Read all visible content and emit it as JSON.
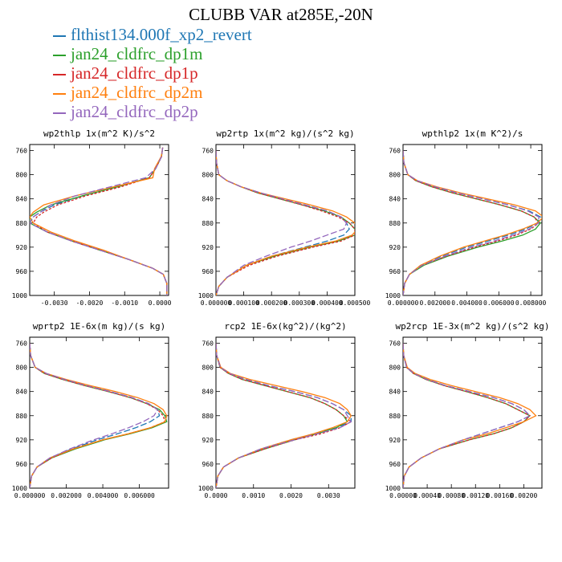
{
  "title": "CLUBB VAR at285E,-20N",
  "legend": [
    {
      "label": "flthist134.000f_xp2_revert",
      "color": "#1f77b4"
    },
    {
      "label": "jan24_cldfrc_dp1m",
      "color": "#2ca02c"
    },
    {
      "label": "jan24_cldfrc_dp1p",
      "color": "#d62728"
    },
    {
      "label": "jan24_cldfrc_dp2m",
      "color": "#ff7f0e"
    },
    {
      "label": "jan24_cldfrc_dp2p",
      "color": "#9467bd"
    }
  ],
  "chart_data": [
    {
      "type": "line",
      "title": "wp2thlp   1x(m^2 K)/s^2",
      "ylim": [
        1000,
        750
      ],
      "xlim": [
        -0.0037,
        0.00025
      ],
      "yticks": [
        760,
        800,
        840,
        880,
        920,
        960,
        1000
      ],
      "xticks": [
        -0.003,
        -0.002,
        -0.001,
        0.0
      ],
      "xticklabels": [
        "-0.0030",
        "-0.0020",
        "-0.0010",
        "0.0000"
      ],
      "y": [
        755,
        770,
        790,
        805,
        820,
        835,
        850,
        862,
        870,
        880,
        895,
        910,
        925,
        940,
        955,
        965,
        980,
        1000
      ],
      "series": [
        {
          "x": [
            8e-05,
            5e-05,
            -0.00012,
            -0.0003,
            -0.0012,
            -0.0022,
            -0.003,
            -0.0034,
            -0.0036,
            -0.0037,
            -0.0032,
            -0.0025,
            -0.0017,
            -0.0009,
            -0.0002,
            0.0001,
            0.0002,
            0.0002
          ]
        },
        {
          "x": [
            8e-05,
            5e-05,
            -0.00012,
            -0.0003,
            -0.0012,
            -0.0022,
            -0.0031,
            -0.0035,
            -0.0037,
            -0.0037,
            -0.0032,
            -0.0025,
            -0.0017,
            -0.0009,
            -0.0002,
            0.0001,
            0.0002,
            0.0002
          ]
        },
        {
          "x": [
            8e-05,
            5e-05,
            -0.00012,
            -0.0003,
            -0.0011,
            -0.0021,
            -0.0029,
            -0.0033,
            -0.0035,
            -0.0036,
            -0.0032,
            -0.0025,
            -0.0017,
            -0.0009,
            -0.0002,
            0.0001,
            0.0002,
            0.0002
          ]
        },
        {
          "x": [
            8e-05,
            4e-05,
            -0.00015,
            -0.0002,
            -0.0013,
            -0.0024,
            -0.0033,
            -0.0036,
            -0.0037,
            -0.0036,
            -0.0031,
            -0.0024,
            -0.0016,
            -0.0009,
            -0.0002,
            0.0001,
            0.0002,
            0.0002
          ]
        },
        {
          "x": [
            8e-05,
            5e-05,
            -0.00012,
            -0.0004,
            -0.0014,
            -0.0024,
            -0.0031,
            -0.0034,
            -0.0036,
            -0.0037,
            -0.0032,
            -0.0025,
            -0.0017,
            -0.0009,
            -0.0002,
            0.0001,
            0.0002,
            0.0002
          ]
        }
      ]
    },
    {
      "type": "line",
      "title": "wp2rtp   1x(m^2 kg)/(s^2 kg)",
      "ylim": [
        1000,
        750
      ],
      "xlim": [
        0,
        0.0005
      ],
      "yticks": [
        760,
        800,
        840,
        880,
        920,
        960,
        1000
      ],
      "xticks": [
        0.0,
        0.0001,
        0.0002,
        0.0003,
        0.0004,
        0.0005
      ],
      "xticklabels": [
        "0.000000",
        "0.000100",
        "0.000200",
        "0.000300",
        "0.000400",
        "0.000500"
      ],
      "y": [
        760,
        780,
        800,
        810,
        820,
        830,
        840,
        850,
        860,
        870,
        880,
        890,
        900,
        910,
        920,
        935,
        950,
        970,
        985,
        1000
      ],
      "series": [
        {
          "x": [
            0.0,
            2e-06,
            1e-05,
            4e-05,
            9e-05,
            0.00016,
            0.00024,
            0.00032,
            0.0004,
            0.00045,
            0.00047,
            0.00048,
            0.00046,
            0.0004,
            0.00032,
            0.0002,
            0.00011,
            4e-05,
            1e-05,
            0.0
          ]
        },
        {
          "x": [
            0.0,
            2e-06,
            1e-05,
            4e-05,
            9e-05,
            0.00015,
            0.00023,
            0.00031,
            0.00039,
            0.00045,
            0.00048,
            0.0005,
            0.0005,
            0.00044,
            0.00034,
            0.00021,
            0.00011,
            4e-05,
            1e-05,
            0.0
          ]
        },
        {
          "x": [
            0.0,
            2e-06,
            1e-05,
            4e-05,
            9e-05,
            0.00015,
            0.00023,
            0.00031,
            0.00038,
            0.00044,
            0.00048,
            0.0005,
            0.0005,
            0.00045,
            0.00035,
            0.00022,
            0.00012,
            4e-05,
            1e-05,
            0.0
          ]
        },
        {
          "x": [
            0.0,
            2e-06,
            1e-05,
            4e-05,
            9e-05,
            0.00016,
            0.00025,
            0.00034,
            0.00042,
            0.00047,
            0.0005,
            0.00051,
            0.00049,
            0.00043,
            0.00033,
            0.0002,
            0.00011,
            4e-05,
            1e-05,
            0.0
          ]
        },
        {
          "x": [
            0.0,
            2e-06,
            1e-05,
            4e-05,
            9e-05,
            0.00016,
            0.00024,
            0.00032,
            0.0004,
            0.00045,
            0.00047,
            0.00046,
            0.0004,
            0.00034,
            0.00027,
            0.00018,
            0.0001,
            4e-05,
            1e-05,
            0.0
          ]
        }
      ]
    },
    {
      "type": "line",
      "title": "wpthlp2   1x(m K^2)/s",
      "ylim": [
        1000,
        750
      ],
      "xlim": [
        0,
        0.0087
      ],
      "yticks": [
        760,
        800,
        840,
        880,
        920,
        960,
        1000
      ],
      "xticks": [
        0.0,
        0.002,
        0.004,
        0.006,
        0.008
      ],
      "xticklabels": [
        "0.000000",
        "0.002000",
        "0.004000",
        "0.006000",
        "0.008000"
      ],
      "y": [
        760,
        780,
        800,
        810,
        820,
        830,
        840,
        850,
        860,
        870,
        880,
        890,
        900,
        910,
        920,
        935,
        950,
        965,
        980,
        1000
      ],
      "series": [
        {
          "x": [
            0.0,
            5e-05,
            0.0003,
            0.0009,
            0.002,
            0.0034,
            0.005,
            0.0066,
            0.0079,
            0.0086,
            0.0084,
            0.0077,
            0.0066,
            0.0053,
            0.004,
            0.0024,
            0.0011,
            0.0004,
            0.0001,
            0.0
          ]
        },
        {
          "x": [
            0.0,
            5e-05,
            0.0003,
            0.0008,
            0.0018,
            0.0031,
            0.0046,
            0.0061,
            0.0074,
            0.0082,
            0.0086,
            0.0083,
            0.0075,
            0.0062,
            0.0047,
            0.0028,
            0.0013,
            0.0004,
            0.0001,
            0.0
          ]
        },
        {
          "x": [
            0.0,
            5e-05,
            0.0003,
            0.0008,
            0.0018,
            0.0031,
            0.0046,
            0.0061,
            0.0074,
            0.0082,
            0.0085,
            0.008,
            0.0071,
            0.0059,
            0.0045,
            0.0027,
            0.0012,
            0.0004,
            0.0001,
            0.0
          ]
        },
        {
          "x": [
            0.0,
            5e-05,
            0.0003,
            0.0009,
            0.0021,
            0.0036,
            0.0053,
            0.007,
            0.0083,
            0.0088,
            0.0084,
            0.0075,
            0.0064,
            0.0051,
            0.0038,
            0.0023,
            0.0011,
            0.0004,
            0.0001,
            0.0
          ]
        },
        {
          "x": [
            0.0,
            5e-05,
            0.0003,
            0.0009,
            0.002,
            0.0034,
            0.005,
            0.0066,
            0.0078,
            0.0085,
            0.0085,
            0.0079,
            0.0069,
            0.0057,
            0.0043,
            0.0026,
            0.0012,
            0.0004,
            0.0001,
            0.0
          ]
        }
      ]
    },
    {
      "type": "line",
      "title": "wprtp2   1E-6x(m kg)/(s kg)",
      "ylim": [
        1000,
        750
      ],
      "xlim": [
        0,
        0.0076
      ],
      "yticks": [
        760,
        800,
        840,
        880,
        920,
        960,
        1000
      ],
      "xticks": [
        0.0,
        0.002,
        0.004,
        0.006
      ],
      "xticklabels": [
        "0.000000",
        "0.002000",
        "0.004000",
        "0.006000"
      ],
      "y": [
        760,
        780,
        800,
        810,
        820,
        830,
        840,
        850,
        860,
        870,
        880,
        890,
        900,
        910,
        920,
        935,
        950,
        965,
        980,
        1000
      ],
      "series": [
        {
          "x": [
            0.0,
            5e-05,
            0.0003,
            0.0009,
            0.0019,
            0.0031,
            0.0044,
            0.0056,
            0.0065,
            0.007,
            0.0071,
            0.0066,
            0.0058,
            0.0048,
            0.0037,
            0.0023,
            0.0011,
            0.0004,
            0.0001,
            0.0
          ]
        },
        {
          "x": [
            0.0,
            5e-05,
            0.0003,
            0.0008,
            0.0018,
            0.003,
            0.0043,
            0.0055,
            0.0064,
            0.0071,
            0.0074,
            0.0075,
            0.0067,
            0.0055,
            0.0041,
            0.0025,
            0.0012,
            0.0004,
            0.0001,
            0.0
          ]
        },
        {
          "x": [
            0.0,
            5e-05,
            0.0003,
            0.0008,
            0.0018,
            0.003,
            0.0043,
            0.0055,
            0.0064,
            0.007,
            0.0073,
            0.0074,
            0.0066,
            0.0054,
            0.004,
            0.0024,
            0.0012,
            0.0004,
            0.0001,
            0.0
          ]
        },
        {
          "x": [
            0.0,
            5e-05,
            0.0003,
            0.0009,
            0.002,
            0.0033,
            0.0047,
            0.0059,
            0.0068,
            0.0073,
            0.0075,
            0.0074,
            0.0066,
            0.0054,
            0.004,
            0.0024,
            0.0011,
            0.0004,
            0.0001,
            0.0
          ]
        },
        {
          "x": [
            0.0,
            5e-05,
            0.0003,
            0.0009,
            0.0019,
            0.0031,
            0.0044,
            0.0056,
            0.0065,
            0.007,
            0.0068,
            0.0062,
            0.0054,
            0.0045,
            0.0035,
            0.0022,
            0.0011,
            0.0004,
            0.0001,
            0.0
          ]
        }
      ]
    },
    {
      "type": "line",
      "title": "rcp2   1E-6x(kg^2)/(kg^2)",
      "ylim": [
        1000,
        750
      ],
      "xlim": [
        0,
        0.0037
      ],
      "yticks": [
        760,
        800,
        840,
        880,
        920,
        960,
        1000
      ],
      "xticks": [
        0.0,
        0.001,
        0.002,
        0.003
      ],
      "xticklabels": [
        "0.0000",
        "0.0010",
        "0.0020",
        "0.0030"
      ],
      "y": [
        760,
        780,
        800,
        810,
        820,
        830,
        840,
        850,
        860,
        870,
        880,
        890,
        900,
        910,
        920,
        935,
        950,
        965,
        980,
        1000
      ],
      "series": [
        {
          "x": [
            0.0,
            2e-05,
            0.00012,
            0.00035,
            0.0008,
            0.0014,
            0.0021,
            0.0027,
            0.0031,
            0.0034,
            0.0036,
            0.0036,
            0.0032,
            0.0026,
            0.002,
            0.0012,
            0.0006,
            0.0002,
            5e-05,
            0.0
          ]
        },
        {
          "x": [
            0.0,
            2e-05,
            0.00011,
            0.00033,
            0.0007,
            0.0013,
            0.0019,
            0.0025,
            0.0029,
            0.0032,
            0.0034,
            0.0035,
            0.0032,
            0.0027,
            0.0021,
            0.0013,
            0.0006,
            0.0002,
            5e-05,
            0.0
          ]
        },
        {
          "x": [
            0.0,
            2e-05,
            0.00011,
            0.00033,
            0.0007,
            0.0013,
            0.0019,
            0.0025,
            0.0029,
            0.0032,
            0.0034,
            0.0036,
            0.0033,
            0.0028,
            0.0021,
            0.0013,
            0.0006,
            0.0002,
            5e-05,
            0.0
          ]
        },
        {
          "x": [
            0.0,
            2e-05,
            0.00013,
            0.00038,
            0.0009,
            0.0016,
            0.0023,
            0.0029,
            0.0033,
            0.0035,
            0.0036,
            0.0035,
            0.0031,
            0.0026,
            0.002,
            0.0012,
            0.0006,
            0.0002,
            5e-05,
            0.0
          ]
        },
        {
          "x": [
            0.0,
            2e-05,
            0.00012,
            0.00036,
            0.0008,
            0.0014,
            0.0021,
            0.0027,
            0.0031,
            0.0034,
            0.0035,
            0.0036,
            0.0033,
            0.0027,
            0.0021,
            0.0012,
            0.0006,
            0.0002,
            5e-05,
            0.0
          ]
        }
      ]
    },
    {
      "type": "line",
      "title": "wp2rcp   1E-3x(m^2 kg)/(s^2 kg)",
      "ylim": [
        1000,
        750
      ],
      "xlim": [
        0,
        0.0023
      ],
      "yticks": [
        760,
        800,
        840,
        880,
        920,
        960,
        1000
      ],
      "xticks": [
        0.0,
        0.0004,
        0.0008,
        0.0012,
        0.0016,
        0.002
      ],
      "xticklabels": [
        "0.00000",
        "0.00040",
        "0.00080",
        "0.00120",
        "0.00160",
        "0.00200"
      ],
      "y": [
        760,
        780,
        800,
        810,
        820,
        830,
        840,
        850,
        860,
        870,
        880,
        890,
        900,
        910,
        920,
        935,
        950,
        965,
        980,
        1000
      ],
      "series": [
        {
          "x": [
            0.0,
            1e-05,
            6e-05,
            0.00018,
            0.0004,
            0.0007,
            0.0011,
            0.0015,
            0.0018,
            0.002,
            0.0021,
            0.0019,
            0.0016,
            0.0013,
            0.001,
            0.0006,
            0.0003,
            0.0001,
            2e-05,
            0.0
          ]
        },
        {
          "x": [
            0.0,
            1e-05,
            6e-05,
            0.00017,
            0.00038,
            0.00068,
            0.00105,
            0.0014,
            0.0017,
            0.0019,
            0.0021,
            0.002,
            0.0018,
            0.0015,
            0.0011,
            0.0006,
            0.0003,
            0.0001,
            2e-05,
            0.0
          ]
        },
        {
          "x": [
            0.0,
            1e-05,
            6e-05,
            0.00017,
            0.00038,
            0.00068,
            0.00105,
            0.0014,
            0.0017,
            0.0019,
            0.0021,
            0.002,
            0.0018,
            0.0015,
            0.0011,
            0.0006,
            0.0003,
            0.0001,
            2e-05,
            0.0
          ]
        },
        {
          "x": [
            0.0,
            1e-05,
            7e-05,
            0.0002,
            0.00045,
            0.0008,
            0.0012,
            0.0016,
            0.0019,
            0.0021,
            0.0022,
            0.002,
            0.0017,
            0.0014,
            0.001,
            0.0006,
            0.0003,
            0.0001,
            2e-05,
            0.0
          ]
        },
        {
          "x": [
            0.0,
            1e-05,
            6e-05,
            0.00018,
            0.0004,
            0.0007,
            0.0011,
            0.0015,
            0.0018,
            0.002,
            0.0021,
            0.0019,
            0.0016,
            0.0013,
            0.001,
            0.0006,
            0.0003,
            0.0001,
            2e-05,
            0.0
          ]
        }
      ]
    }
  ]
}
